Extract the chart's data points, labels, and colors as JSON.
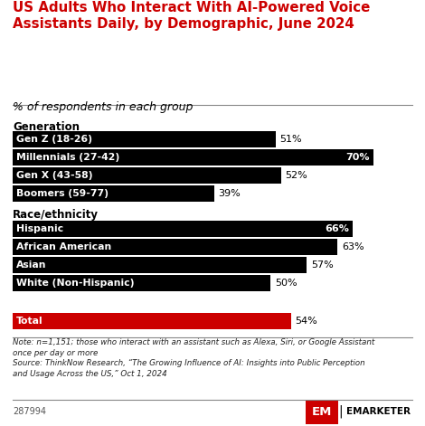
{
  "title": "US Adults Who Interact With AI-Powered Voice\nAssistants Daily, by Demographic, June 2024",
  "subtitle": "% of respondents in each group",
  "categories": [
    "Gen Z (18-26)",
    "Millennials (27-42)",
    "Gen X (43-58)",
    "Boomers (59-77)",
    "Hispanic",
    "African American",
    "Asian",
    "White (Non-Hispanic)",
    "Total"
  ],
  "values": [
    51,
    70,
    52,
    39,
    66,
    63,
    57,
    50,
    54
  ],
  "bar_colors": [
    "#000000",
    "#000000",
    "#000000",
    "#000000",
    "#000000",
    "#000000",
    "#000000",
    "#000000",
    "#cc0000"
  ],
  "section_labels": [
    "Generation",
    "Race/ethnicity"
  ],
  "section_indices": [
    0,
    4
  ],
  "note_line1": "Note: n=1,151; those who interact with an assistant such as Alexa, Siri, or Google Assistant",
  "note_line2": "once per day or more",
  "note_line3": "Source: ThinkNow Research, “The Growing Influence of AI: Insights into Public Perception",
  "note_line4": "and Usage Across the US,” Oct 1, 2024",
  "watermark": "287994",
  "title_color": "#cc0000",
  "background_color": "#ffffff",
  "bar_text_color": "#ffffff",
  "value_text_color": "#000000",
  "xlim_max": 75,
  "bar_height": 0.72
}
